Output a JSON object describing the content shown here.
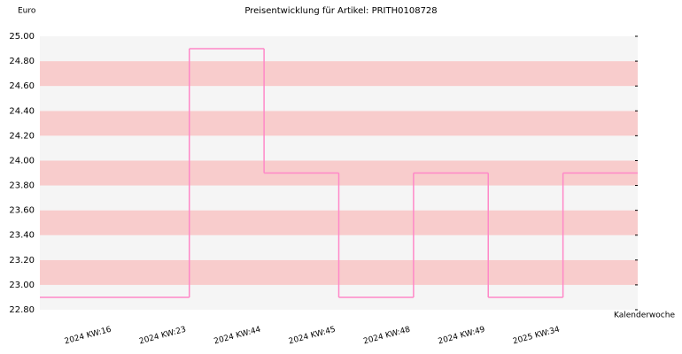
{
  "chart_data": {
    "type": "step",
    "title": "Preisentwicklung für Artikel: PRITH0108728",
    "y_label": "Euro",
    "x_label": "Kalenderwoche",
    "categories": [
      "2024 KW:16",
      "2024 KW:23",
      "2024 KW:44",
      "2024 KW:45",
      "2024 KW:48",
      "2024 KW:49",
      "2025 KW:34"
    ],
    "values": [
      22.9,
      24.9,
      23.9,
      22.9,
      23.9,
      22.9,
      23.9
    ],
    "color": "#ff88c8",
    "ylim": [
      22.8,
      25.0
    ],
    "yticks": [
      {
        "value": 22.8,
        "label": "22.80"
      },
      {
        "value": 23.0,
        "label": "23.00"
      },
      {
        "value": 23.2,
        "label": "23.20"
      },
      {
        "value": 23.4,
        "label": "23.40"
      },
      {
        "value": 23.6,
        "label": "23.60"
      },
      {
        "value": 23.8,
        "label": "23.80"
      },
      {
        "value": 24.0,
        "label": "24.00"
      },
      {
        "value": 24.2,
        "label": "24.20"
      },
      {
        "value": 24.4,
        "label": "24.40"
      },
      {
        "value": 24.6,
        "label": "24.60"
      },
      {
        "value": 24.8,
        "label": "24.80"
      },
      {
        "value": 25.0,
        "label": "25.00"
      }
    ],
    "band_colors": [
      "#f5f5f5",
      "#f8cccc"
    ]
  }
}
